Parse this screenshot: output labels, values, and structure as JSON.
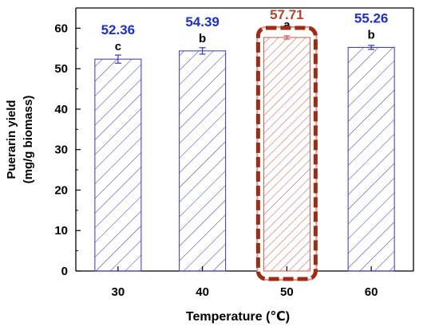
{
  "chart_data": {
    "type": "bar",
    "xlabel": "Temperature (℃)",
    "ylabel_lines": [
      "Puerarin yield",
      "(mg/g biomass)"
    ],
    "ylim": [
      0,
      65
    ],
    "yticks": [
      "0",
      "10",
      "20",
      "30",
      "40",
      "50",
      "60"
    ],
    "categories": [
      "30",
      "40",
      "50",
      "60"
    ],
    "values": [
      52.36,
      54.39,
      57.71,
      55.26
    ],
    "errors": [
      1.0,
      0.8,
      0.4,
      0.5
    ],
    "value_labels": [
      "52.36",
      "54.39",
      "57.71",
      "55.26"
    ],
    "significance_letters": [
      "c",
      "b",
      "a",
      "b"
    ],
    "highlight_index": 2,
    "grid": false,
    "hatch": "diagonal"
  },
  "colors": {
    "bar_normal": "#3333cc",
    "bar_highlight": "#cc5544",
    "label_normal": "#1f2fd0",
    "label_highlight": "#b5442c",
    "highlight_box": "#a02a12",
    "highlight_fill": "#ee8a80",
    "axis": "#000000"
  }
}
